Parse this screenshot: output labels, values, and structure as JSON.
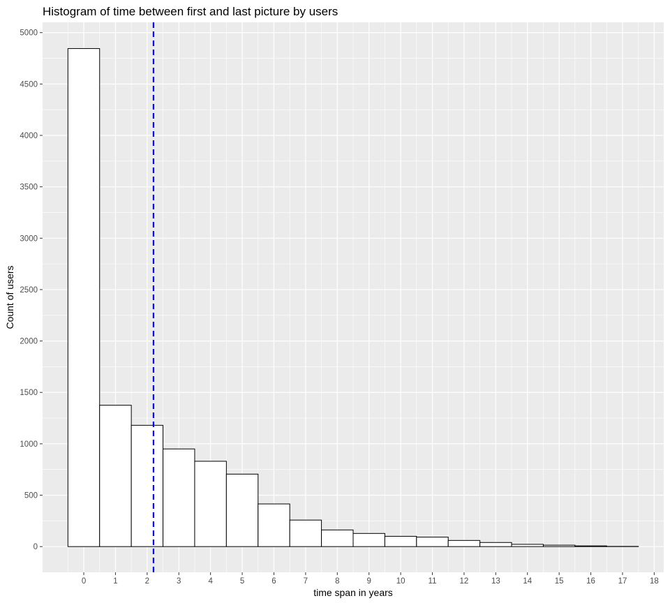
{
  "chart_data": {
    "type": "bar",
    "title": "Histogram of time between first and last picture by users",
    "xlabel": "time span in years",
    "ylabel": "Count of users",
    "categories": [
      "0",
      "1",
      "2",
      "3",
      "4",
      "5",
      "6",
      "7",
      "8",
      "9",
      "10",
      "11",
      "12",
      "13",
      "14",
      "15",
      "16",
      "17"
    ],
    "x_ticks": [
      "0",
      "1",
      "2",
      "3",
      "4",
      "5",
      "6",
      "7",
      "8",
      "9",
      "10",
      "11",
      "12",
      "13",
      "14",
      "15",
      "16",
      "17",
      "18"
    ],
    "y_ticks": [
      "0",
      "500",
      "1000",
      "1500",
      "2000",
      "2500",
      "3000",
      "3500",
      "4000",
      "4500",
      "5000"
    ],
    "values": [
      4845,
      1375,
      1180,
      950,
      830,
      705,
      415,
      258,
      162,
      128,
      100,
      92,
      60,
      40,
      22,
      14,
      7,
      2
    ],
    "xlim": [
      -1.3,
      18.3
    ],
    "ylim": [
      -250,
      5100
    ],
    "mean_line": {
      "x": 2.2,
      "color": "#0000ff",
      "style": "dashed"
    },
    "grid": true,
    "colors": {
      "panel": "#ebebeb",
      "grid_major": "#ffffff",
      "bar_fill": "#ffffff",
      "bar_stroke": "#000000"
    }
  }
}
